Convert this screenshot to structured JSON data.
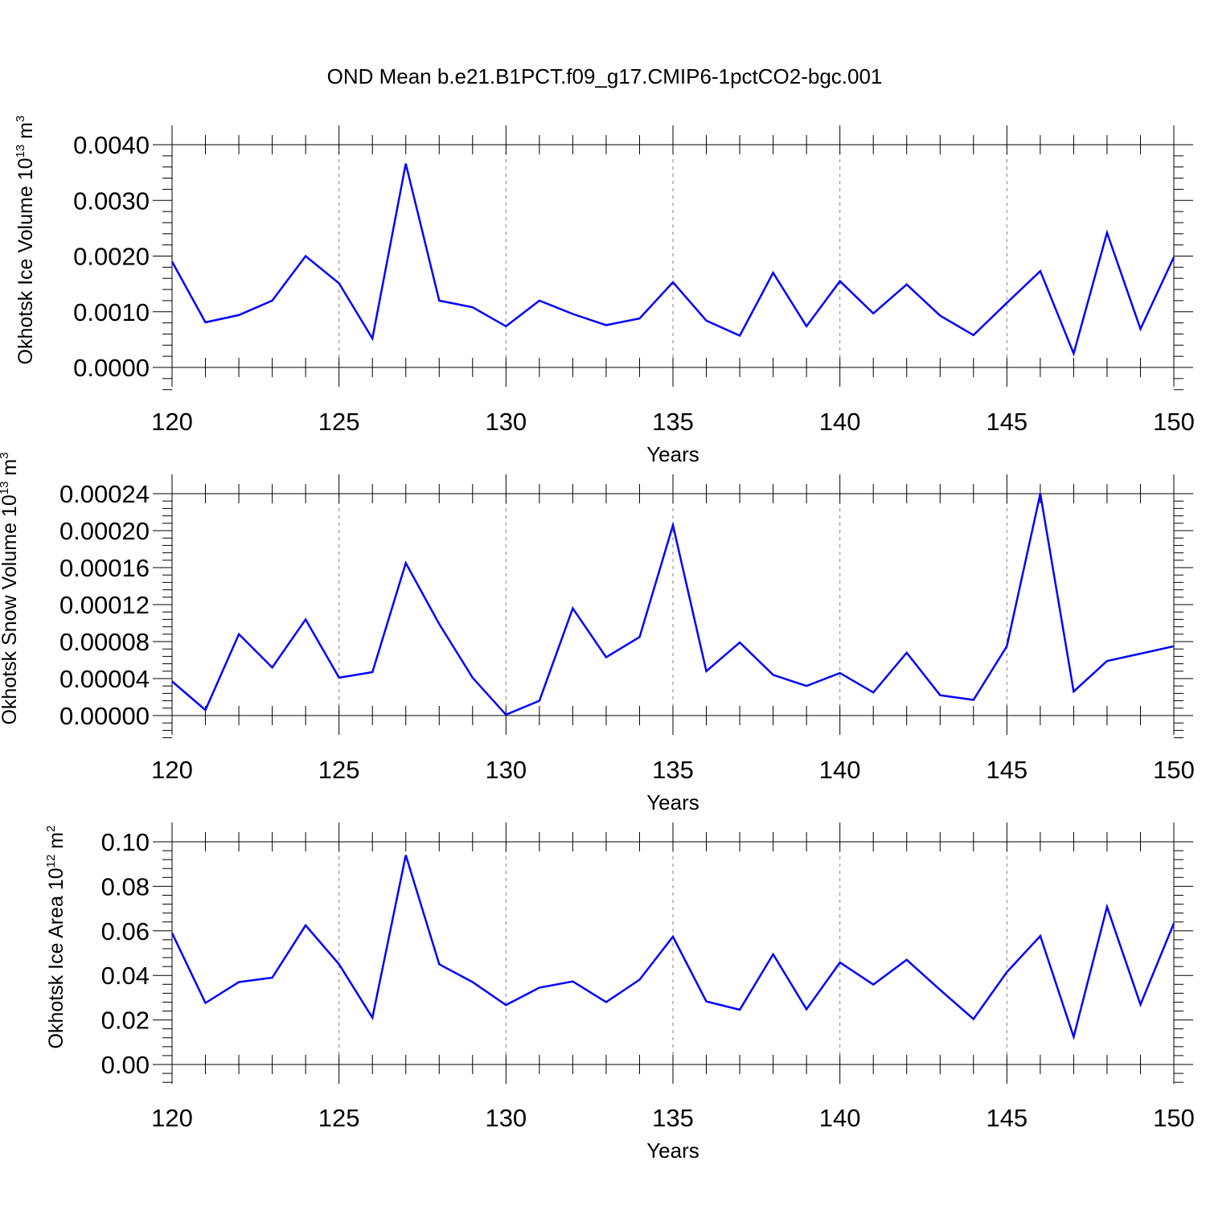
{
  "title": "OND Mean b.e21.B1PCT.f09_g17.CMIP6-1pctCO2-bgc.001",
  "colors": {
    "line": "#0000ff",
    "axis": "#000000",
    "grid": "#808080"
  },
  "chart_data": [
    {
      "type": "line",
      "xlabel": "Years",
      "ylabel": {
        "text": "Okhotsk Ice Volume 10",
        "exponent": "13",
        "unit": " m",
        "unit_exponent": "3"
      },
      "xlim": [
        120,
        150
      ],
      "ylim": [
        0,
        0.004
      ],
      "x_ticks": [
        "120",
        "125",
        "130",
        "135",
        "140",
        "145",
        "150"
      ],
      "y_ticks": [
        "0.0000",
        "0.0010",
        "0.0020",
        "0.0030",
        "0.0040"
      ],
      "x_grid": "dashed vertical lines at 125, 130, 135, 140, 145",
      "x": [
        120,
        121,
        122,
        123,
        124,
        125,
        126,
        127,
        128,
        129,
        130,
        131,
        132,
        133,
        134,
        135,
        136,
        137,
        138,
        139,
        140,
        141,
        142,
        143,
        144,
        145,
        146,
        147,
        148,
        149,
        150
      ],
      "values": [
        0.0019,
        0.00081,
        0.00094,
        0.0012,
        0.002,
        0.00151,
        0.00052,
        0.00366,
        0.0012,
        0.00108,
        0.00074,
        0.0012,
        0.00096,
        0.00076,
        0.00088,
        0.00153,
        0.00084,
        0.00057,
        0.0017,
        0.00074,
        0.00155,
        0.00097,
        0.00149,
        0.00093,
        0.00058,
        0.00116,
        0.00173,
        0.00025,
        0.00242,
        0.00069,
        0.00198
      ]
    },
    {
      "type": "line",
      "xlabel": "Years",
      "ylabel": {
        "text": "Okhotsk Snow Volume 10",
        "exponent": "13",
        "unit": " m",
        "unit_exponent": "3"
      },
      "xlim": [
        120,
        150
      ],
      "ylim": [
        0,
        0.00024
      ],
      "x_ticks": [
        "120",
        "125",
        "130",
        "135",
        "140",
        "145",
        "150"
      ],
      "y_ticks": [
        "0.00000",
        "0.00004",
        "0.00008",
        "0.00012",
        "0.00016",
        "0.00020",
        "0.00024"
      ],
      "x_grid": "dashed vertical lines at 125, 130, 135, 140, 145",
      "x": [
        120,
        121,
        122,
        123,
        124,
        125,
        126,
        127,
        128,
        129,
        130,
        131,
        132,
        133,
        134,
        135,
        136,
        137,
        138,
        139,
        140,
        141,
        142,
        143,
        144,
        145,
        146,
        147,
        148,
        149,
        150
      ],
      "values": [
        3.7e-05,
        6e-06,
        8.8e-05,
        5.2e-05,
        0.000104,
        4.1e-05,
        4.7e-05,
        0.000165,
        9.9e-05,
        4.1e-05,
        1e-06,
        1.6e-05,
        0.000116,
        6.3e-05,
        8.5e-05,
        0.000206,
        4.8e-05,
        7.9e-05,
        4.4e-05,
        3.2e-05,
        4.6e-05,
        2.5e-05,
        6.8e-05,
        2.2e-05,
        1.7e-05,
        7.5e-05,
        0.00024,
        2.6e-05,
        5.9e-05,
        6.7e-05,
        7.5e-05
      ]
    },
    {
      "type": "line",
      "xlabel": "Years",
      "ylabel": {
        "text": "Okhotsk Ice Area 10",
        "exponent": "12",
        "unit": " m",
        "unit_exponent": "2"
      },
      "xlim": [
        120,
        150
      ],
      "ylim": [
        0,
        0.1
      ],
      "x_ticks": [
        "120",
        "125",
        "130",
        "135",
        "140",
        "145",
        "150"
      ],
      "y_ticks": [
        "0.00",
        "0.02",
        "0.04",
        "0.06",
        "0.08",
        "0.10"
      ],
      "x_grid": "dashed vertical lines at 125, 130, 135, 140, 145",
      "x": [
        120,
        121,
        122,
        123,
        124,
        125,
        126,
        127,
        128,
        129,
        130,
        131,
        132,
        133,
        134,
        135,
        136,
        137,
        138,
        139,
        140,
        141,
        142,
        143,
        144,
        145,
        146,
        147,
        148,
        149,
        150
      ],
      "values": [
        0.059,
        0.0276,
        0.037,
        0.039,
        0.0625,
        0.045,
        0.021,
        0.094,
        0.045,
        0.037,
        0.0267,
        0.0345,
        0.0373,
        0.028,
        0.0381,
        0.0574,
        0.0283,
        0.0246,
        0.0495,
        0.0248,
        0.0458,
        0.0359,
        0.047,
        0.0335,
        0.0204,
        0.0415,
        0.0577,
        0.0124,
        0.0708,
        0.0269,
        0.0634
      ]
    }
  ]
}
